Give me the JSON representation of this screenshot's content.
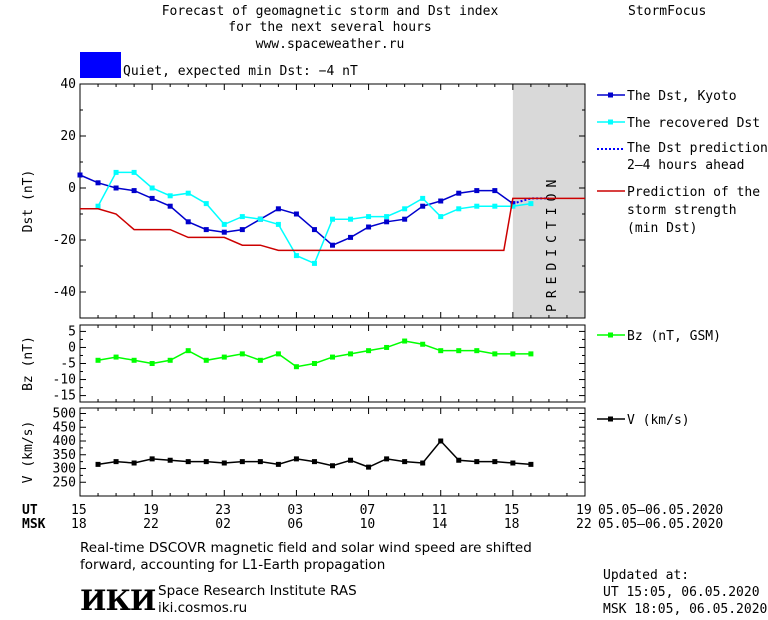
{
  "header": {
    "title_line1": "Forecast of geomagnetic storm and Dst index",
    "title_line2": "for the next several hours",
    "title_line3": "www.spaceweather.ru",
    "brand": "StormFocus",
    "status_text": "Quiet, expected min Dst: −4 nT",
    "status_color": "#0000ff"
  },
  "legend": {
    "dst_kyoto": "The Dst, Kyoto",
    "recovered": "The recovered Dst",
    "prediction_line1": "The Dst prediction",
    "prediction_line2": "2–4 hours ahead",
    "strength_line1": "Prediction of the",
    "strength_line2": "storm strength",
    "strength_line3": "(min Dst)",
    "bz": "Bz (nT, GSM)",
    "v": "V (km/s)"
  },
  "prediction_label": "PREDICTION",
  "time_axis": {
    "ut_label": "UT",
    "msk_label": "MSK",
    "ut_ticks": [
      "15",
      "19",
      "23",
      "03",
      "07",
      "11",
      "15",
      "19"
    ],
    "msk_ticks": [
      "18",
      "22",
      "02",
      "06",
      "10",
      "14",
      "18",
      "22"
    ],
    "date_range_ut": "05.05–06.05.2020",
    "date_range_msk": "05.05–06.05.2020"
  },
  "footer": {
    "note_line1": "Real-time DSCOVR magnetic field and solar wind speed are shifted",
    "note_line2": "forward, accounting for L1-Earth propagation",
    "logo_text": "ИКИ",
    "institute": "Space Research Institute RAS",
    "site": "iki.cosmos.ru",
    "updated_label": "Updated at:",
    "updated_ut": "UT   15:05, 06.05.2020",
    "updated_msk": "MSK 18:05, 06.05.2020"
  },
  "colors": {
    "dst": "#0000cc",
    "recovered": "#00ffff",
    "prediction": "#0000ff",
    "strength": "#cc0000",
    "bz": "#00ff00",
    "v": "#000000",
    "prediction_band": "#d9d9d9"
  },
  "chart_data": [
    {
      "type": "line",
      "ylabel": "Dst (nT)",
      "xlim": [
        0,
        28
      ],
      "ylim": [
        -50,
        40
      ],
      "yticks": [
        40,
        20,
        0,
        -20,
        -40
      ],
      "prediction_start": 24,
      "series": [
        {
          "name": "The Dst, Kyoto",
          "x": [
            0,
            1,
            2,
            3,
            4,
            5,
            6,
            7,
            8,
            9,
            10,
            11,
            12,
            13,
            14,
            15,
            16,
            17,
            18,
            19,
            20,
            21,
            22,
            23,
            24
          ],
          "values": [
            5,
            2,
            0,
            -1,
            -4,
            -7,
            -13,
            -16,
            -17,
            -16,
            -12,
            -8,
            -10,
            -16,
            -22,
            -19,
            -15,
            -13,
            -12,
            -7,
            -5,
            -2,
            -1,
            -1,
            -6
          ]
        },
        {
          "name": "The recovered Dst",
          "x": [
            1,
            2,
            3,
            4,
            5,
            6,
            7,
            8,
            9,
            10,
            11,
            12,
            13,
            14,
            15,
            16,
            17,
            18,
            19,
            20,
            21,
            22,
            23,
            24,
            25
          ],
          "values": [
            -7,
            6,
            6,
            0,
            -3,
            -2,
            -6,
            -14,
            -11,
            -12,
            -14,
            -26,
            -29,
            -12,
            -12,
            -11,
            -11,
            -8,
            -4,
            -11,
            -8,
            -7,
            -7,
            -7,
            -6
          ]
        },
        {
          "name": "The Dst prediction",
          "x": [
            24,
            24.5,
            25,
            25.5,
            26
          ],
          "values": [
            -6,
            -5,
            -4,
            -4,
            -4
          ]
        },
        {
          "name": "Prediction of the storm strength",
          "x": [
            0,
            1,
            2,
            3,
            5,
            6,
            7,
            8,
            9,
            10,
            11,
            12,
            13,
            14,
            15,
            16,
            17,
            18,
            19,
            20,
            21,
            22,
            23,
            23.5,
            24,
            25,
            26,
            27,
            28
          ],
          "values": [
            -8,
            -8,
            -10,
            -16,
            -16,
            -19,
            -19,
            -19,
            -22,
            -22,
            -24,
            -24,
            -24,
            -24,
            -24,
            -24,
            -24,
            -24,
            -24,
            -24,
            -24,
            -24,
            -24,
            -24,
            -4,
            -4,
            -4,
            -4,
            -4
          ]
        }
      ]
    },
    {
      "type": "line",
      "ylabel": "Bz (nT)",
      "xlim": [
        0,
        28
      ],
      "ylim": [
        -17,
        7
      ],
      "yticks": [
        5,
        0,
        -5,
        -10,
        -15
      ],
      "series": [
        {
          "name": "Bz (nT, GSM)",
          "x": [
            1,
            2,
            3,
            4,
            5,
            6,
            7,
            8,
            9,
            10,
            11,
            12,
            13,
            14,
            15,
            16,
            17,
            18,
            19,
            20,
            21,
            22,
            23,
            24,
            25
          ],
          "values": [
            -4,
            -3,
            -4,
            -5,
            -4,
            -1,
            -4,
            -3,
            -2,
            -4,
            -2,
            -6,
            -5,
            -3,
            -2,
            -1,
            0,
            2,
            1,
            -1,
            -1,
            -1,
            -2,
            -2,
            -2
          ]
        }
      ]
    },
    {
      "type": "line",
      "ylabel": "V (km/s)",
      "xlim": [
        0,
        28
      ],
      "ylim": [
        200,
        520
      ],
      "yticks": [
        500,
        450,
        400,
        350,
        300,
        250
      ],
      "series": [
        {
          "name": "V (km/s)",
          "x": [
            1,
            2,
            3,
            4,
            5,
            6,
            7,
            8,
            9,
            10,
            11,
            12,
            13,
            14,
            15,
            16,
            17,
            18,
            19,
            20,
            21,
            22,
            23,
            24,
            25
          ],
          "values": [
            315,
            325,
            320,
            335,
            330,
            325,
            325,
            320,
            325,
            325,
            315,
            335,
            325,
            310,
            330,
            305,
            335,
            325,
            320,
            400,
            330,
            325,
            325,
            320,
            315
          ]
        }
      ]
    }
  ]
}
